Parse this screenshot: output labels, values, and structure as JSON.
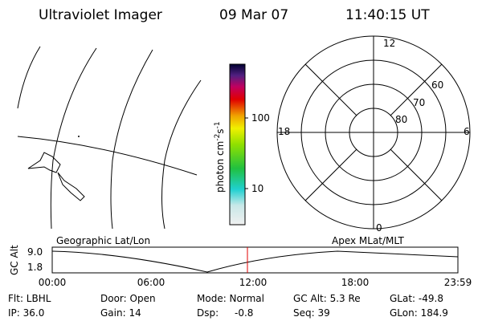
{
  "header": {
    "title": "Ultraviolet Imager",
    "date": "09 Mar 07",
    "time": "11:40:15 UT"
  },
  "colorbar": {
    "label": "photon cm",
    "exp1": "-2",
    "unit2": "s",
    "exp2": "-1",
    "ticks": [
      "100",
      "10"
    ]
  },
  "polar": {
    "mlt": [
      "12",
      "18",
      "6",
      "0"
    ],
    "mlat": [
      "60",
      "70",
      "80"
    ]
  },
  "altitude": {
    "ylabel": "GC Alt",
    "yticks": [
      "9.0",
      "1.8"
    ],
    "xticks": [
      "00:00",
      "06:00",
      "12:00",
      "18:00",
      "23:59"
    ],
    "left_label": "Geographic Lat/Lon",
    "right_label": "Apex MLat/MLT"
  },
  "footer": {
    "rows": [
      [
        "Flt: LBHL",
        "Door: Open",
        "Mode: Normal",
        "GC Alt: 5.3 Re",
        "GLat: -49.8"
      ],
      [
        "IP: 36.0",
        "Gain: 14",
        "Dsp:",
        "Seq: 39",
        "GLon: 184.9"
      ]
    ],
    "dsp_value": "-0.8"
  }
}
